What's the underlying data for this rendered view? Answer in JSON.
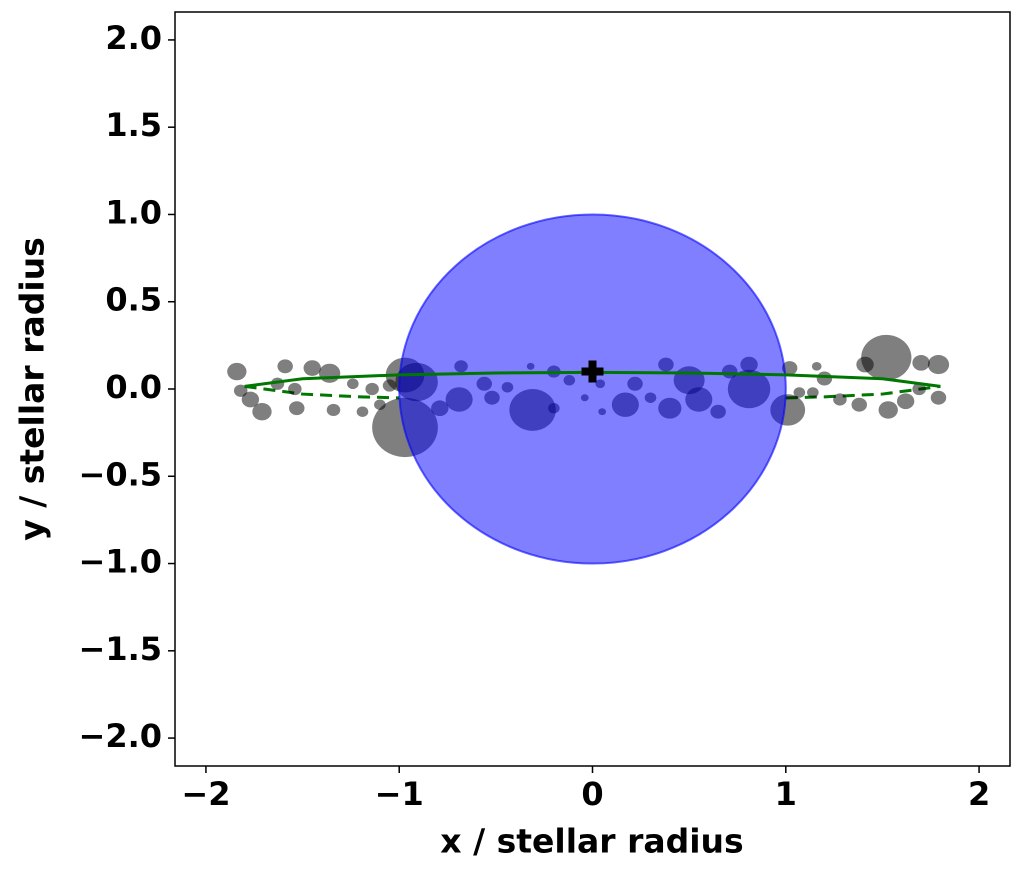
{
  "chart_data": {
    "type": "scatter",
    "xlabel": "x / stellar radius",
    "ylabel": "y / stellar radius",
    "xlim": [
      -2.16,
      2.16
    ],
    "ylim": [
      -2.16,
      2.16
    ],
    "xticks": [
      {
        "value": -2,
        "label": "−2"
      },
      {
        "value": -1,
        "label": "−1"
      },
      0,
      1,
      2
    ],
    "yticks": [
      {
        "value": -2.0,
        "label": "−2.0"
      },
      {
        "value": -1.5,
        "label": "−1.5"
      },
      {
        "value": -1.0,
        "label": "−1.0"
      },
      {
        "value": -0.5,
        "label": "−0.5"
      },
      {
        "value": 0.0,
        "label": "0.0"
      },
      {
        "value": 0.5,
        "label": "0.5"
      },
      {
        "value": 1.0,
        "label": "1.0"
      },
      {
        "value": 1.5,
        "label": "1.5"
      },
      {
        "value": 2.0,
        "label": "2.0"
      }
    ],
    "star": {
      "x": 0,
      "y": 0,
      "radius": 1,
      "color": "#0000ff",
      "alpha": 0.5
    },
    "marker": {
      "x": 0,
      "y": 0.1,
      "color": "#000000"
    },
    "orbit": {
      "color": "#007700",
      "front": {
        "x": [
          -1.8,
          -1.5,
          -1.0,
          -0.5,
          0,
          0.5,
          1.0,
          1.5,
          1.8
        ],
        "y": [
          0.015,
          0.059,
          0.081,
          0.092,
          0.095,
          0.092,
          0.081,
          0.059,
          0.015
        ]
      },
      "back": {
        "x": [
          -1.8,
          -1.5,
          -1.2,
          -1.0,
          0,
          1.0,
          1.2,
          1.5,
          1.8
        ],
        "y": [
          0.015,
          -0.029,
          -0.045,
          -0.051,
          null,
          -0.051,
          -0.045,
          -0.029,
          0.015
        ]
      }
    },
    "blobs": {
      "color": "#000000",
      "alpha": 0.5,
      "x": [
        -0.97,
        1.52,
        -0.31,
        -0.91,
        -0.97,
        1.01,
        0.81,
        0.5,
        0.17,
        -0.69,
        0.55,
        0.4,
        -1.84,
        -1.71,
        -1.77,
        -1.45,
        -1.36,
        1.79,
        1.79,
        1.53,
        1.62,
        1.41,
        1.7,
        -1.59,
        -1.53,
        -1.34,
        -1.19,
        -1.1,
        -0.79,
        -0.52,
        -0.56,
        -0.68,
        -0.2,
        -0.2,
        -0.12,
        0.22,
        0.3,
        0.38,
        0.65,
        0.71,
        0.81,
        1.2,
        1.38,
        1.28,
        1.16,
        1.02,
        0.04,
        -0.04,
        0.05,
        -0.32,
        -0.44,
        -1.24,
        -1.14,
        -1.05,
        -1.82,
        -1.63,
        -1.54,
        1.69,
        1.07,
        1.14
      ],
      "y": [
        -0.22,
        0.18,
        -0.12,
        0.04,
        0.08,
        -0.12,
        0.0,
        0.05,
        -0.09,
        -0.06,
        -0.06,
        -0.11,
        0.1,
        -0.13,
        -0.06,
        0.12,
        0.09,
        0.14,
        -0.05,
        -0.12,
        -0.07,
        0.14,
        0.15,
        0.13,
        -0.11,
        -0.12,
        -0.13,
        -0.09,
        -0.11,
        -0.05,
        0.03,
        0.13,
        0.1,
        -0.11,
        0.05,
        0.03,
        -0.05,
        0.14,
        -0.13,
        0.1,
        0.14,
        0.06,
        -0.09,
        -0.06,
        0.13,
        0.12,
        0.03,
        -0.05,
        -0.13,
        0.13,
        0.01,
        0.03,
        0.0,
        0.02,
        -0.01,
        0.03,
        0.0,
        0.0,
        -0.02,
        -0.02
      ],
      "size": [
        0.17,
        0.13,
        0.12,
        0.11,
        0.1,
        0.09,
        0.11,
        0.08,
        0.07,
        0.07,
        0.07,
        0.06,
        0.05,
        0.05,
        0.045,
        0.045,
        0.055,
        0.055,
        0.04,
        0.05,
        0.045,
        0.045,
        0.045,
        0.04,
        0.04,
        0.035,
        0.03,
        0.03,
        0.045,
        0.04,
        0.04,
        0.035,
        0.035,
        0.03,
        0.03,
        0.04,
        0.03,
        0.04,
        0.04,
        0.04,
        0.045,
        0.04,
        0.04,
        0.035,
        0.025,
        0.04,
        0.025,
        0.02,
        0.02,
        0.02,
        0.03,
        0.03,
        0.035,
        0.035,
        0.035,
        0.035,
        0.035,
        0.035,
        0.03,
        0.03
      ]
    }
  }
}
